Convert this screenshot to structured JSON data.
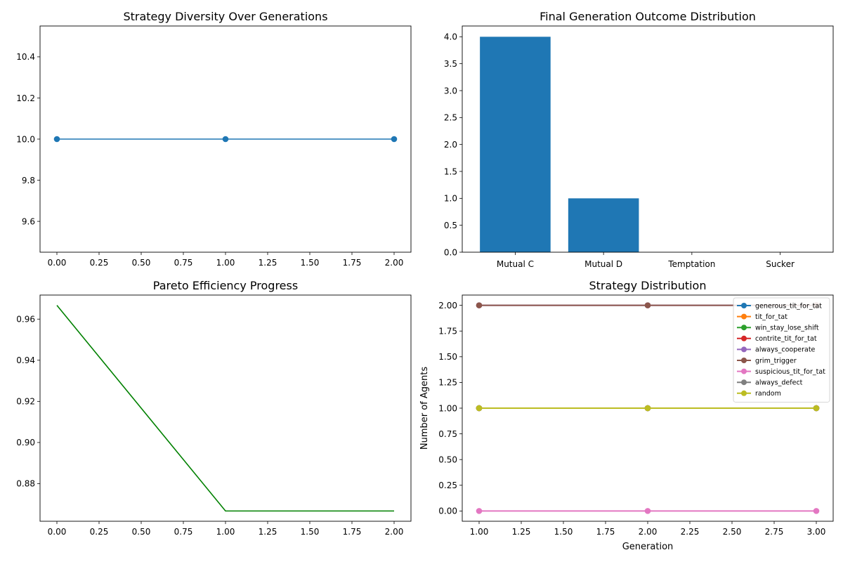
{
  "chart_data": [
    {
      "id": "diversity",
      "type": "line",
      "title": "Strategy Diversity Over Generations",
      "xlabel": "",
      "ylabel": "",
      "xlim": [
        -0.1,
        2.1
      ],
      "ylim": [
        9.45,
        10.55
      ],
      "xticks": [
        0.0,
        0.25,
        0.5,
        0.75,
        1.0,
        1.25,
        1.5,
        1.75,
        2.0
      ],
      "xtick_labels": [
        "0.00",
        "0.25",
        "0.50",
        "0.75",
        "1.00",
        "1.25",
        "1.50",
        "1.75",
        "2.00"
      ],
      "yticks": [
        9.6,
        9.8,
        10.0,
        10.2,
        10.4
      ],
      "ytick_labels": [
        "9.6",
        "9.8",
        "10.0",
        "10.2",
        "10.4"
      ],
      "grid": false,
      "series": [
        {
          "color": "#1f77b4",
          "marker": "o",
          "x": [
            0,
            1,
            2
          ],
          "y": [
            10,
            10,
            10
          ]
        }
      ]
    },
    {
      "id": "outcomes",
      "type": "bar",
      "title": "Final Generation Outcome Distribution",
      "xlabel": "",
      "ylabel": "",
      "categories": [
        "Mutual C",
        "Mutual D",
        "Temptation",
        "Sucker"
      ],
      "values": [
        4,
        1,
        0,
        0
      ],
      "ylim": [
        0,
        4.2
      ],
      "yticks": [
        0.0,
        0.5,
        1.0,
        1.5,
        2.0,
        2.5,
        3.0,
        3.5,
        4.0
      ],
      "ytick_labels": [
        "0.0",
        "0.5",
        "1.0",
        "1.5",
        "2.0",
        "2.5",
        "3.0",
        "3.5",
        "4.0"
      ],
      "grid": false,
      "color": "#1f77b4"
    },
    {
      "id": "pareto",
      "type": "line",
      "title": "Pareto Efficiency Progress",
      "xlabel": "",
      "ylabel": "",
      "xlim": [
        -0.1,
        2.1
      ],
      "ylim": [
        0.8617,
        0.9717
      ],
      "xticks": [
        0.0,
        0.25,
        0.5,
        0.75,
        1.0,
        1.25,
        1.5,
        1.75,
        2.0
      ],
      "xtick_labels": [
        "0.00",
        "0.25",
        "0.50",
        "0.75",
        "1.00",
        "1.25",
        "1.50",
        "1.75",
        "2.00"
      ],
      "yticks": [
        0.88,
        0.9,
        0.92,
        0.94,
        0.96
      ],
      "ytick_labels": [
        "0.88",
        "0.90",
        "0.92",
        "0.94",
        "0.96"
      ],
      "grid": false,
      "series": [
        {
          "color": "#008000",
          "marker": "",
          "x": [
            0,
            1,
            2
          ],
          "y": [
            0.9667,
            0.8667,
            0.8667
          ]
        }
      ]
    },
    {
      "id": "strategies",
      "type": "line",
      "title": "Strategy Distribution",
      "xlabel": "Generation",
      "ylabel": "Number of Agents",
      "xlim": [
        0.9,
        3.1
      ],
      "ylim": [
        -0.1,
        2.1
      ],
      "xticks": [
        1.0,
        1.25,
        1.5,
        1.75,
        2.0,
        2.25,
        2.5,
        2.75,
        3.0
      ],
      "xtick_labels": [
        "1.00",
        "1.25",
        "1.50",
        "1.75",
        "2.00",
        "2.25",
        "2.50",
        "2.75",
        "3.00"
      ],
      "yticks": [
        0.0,
        0.25,
        0.5,
        0.75,
        1.0,
        1.25,
        1.5,
        1.75,
        2.0
      ],
      "ytick_labels": [
        "0.00",
        "0.25",
        "0.50",
        "0.75",
        "1.00",
        "1.25",
        "1.50",
        "1.75",
        "2.00"
      ],
      "grid": false,
      "legend": "top-right",
      "x": [
        1,
        2,
        3
      ],
      "series": [
        {
          "name": "generous_tit_for_tat",
          "color": "#1f77b4",
          "values": [
            1,
            1,
            1
          ]
        },
        {
          "name": "tit_for_tat",
          "color": "#ff7f0e",
          "values": [
            1,
            1,
            1
          ]
        },
        {
          "name": "win_stay_lose_shift",
          "color": "#2ca02c",
          "values": [
            1,
            1,
            1
          ]
        },
        {
          "name": "contrite_tit_for_tat",
          "color": "#d62728",
          "values": [
            1,
            1,
            1
          ]
        },
        {
          "name": "always_cooperate",
          "color": "#9467bd",
          "values": [
            2,
            2,
            2
          ]
        },
        {
          "name": "grim_trigger",
          "color": "#8c564b",
          "values": [
            2,
            2,
            2
          ]
        },
        {
          "name": "suspicious_tit_for_tat",
          "color": "#e377c2",
          "values": [
            0,
            0,
            0
          ]
        },
        {
          "name": "always_defect",
          "color": "#7f7f7f",
          "values": [
            1,
            1,
            1
          ]
        },
        {
          "name": "random",
          "color": "#bcbd22",
          "values": [
            1,
            1,
            1
          ]
        }
      ]
    }
  ]
}
